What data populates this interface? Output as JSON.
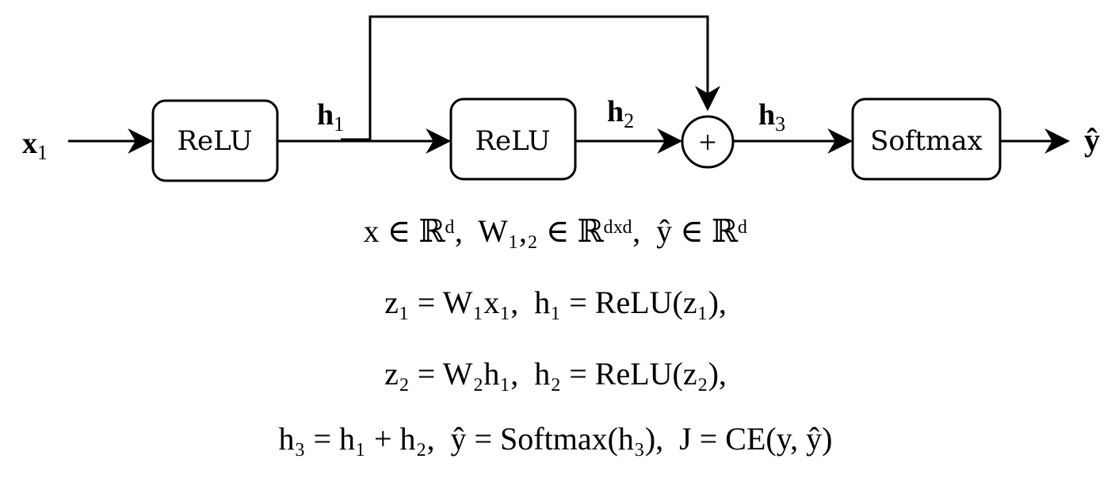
{
  "diagram": {
    "input_label": "x",
    "input_sub": "1",
    "output_label": "ŷ",
    "relu1_label": "ReLU",
    "relu2_label": "ReLU",
    "softmax_label": "Softmax",
    "sum_symbol": "+",
    "h1_label": "h",
    "h1_sub": "1",
    "h2_label": "h",
    "h2_sub": "2",
    "h3_label": "h",
    "h3_sub": "3"
  },
  "equations": [
    "x ∈ ℝᵈ,  W₁,₂ ∈ ℝᵈˣᵈ,  ŷ ∈ ℝᵈ",
    "z₁ = W₁x₁,  h₁ = ReLU(z₁),",
    "z₂ = W₂h₁,  h₂ = ReLU(z₂),",
    "h₃ = h₁ + h₂,  ŷ = Softmax(h₃),  J = CE(y, ŷ)"
  ]
}
